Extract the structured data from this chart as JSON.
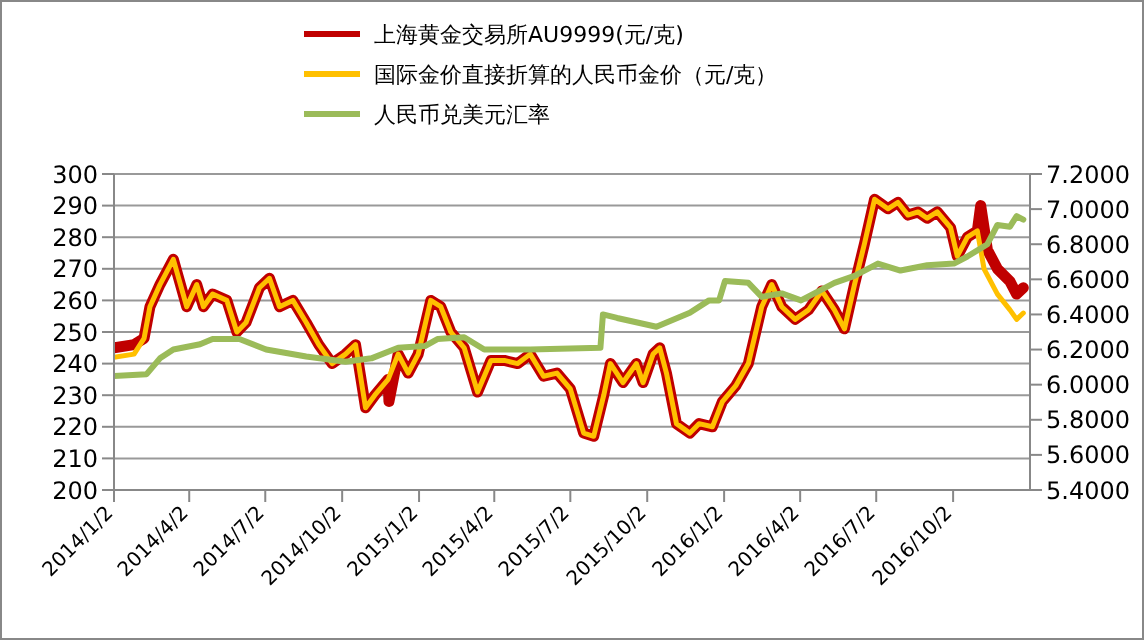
{
  "chart_data": {
    "type": "line",
    "legend": "top",
    "grid": "y",
    "marker": "none",
    "line_style": "solid",
    "xlim": [
      "2014-01-02",
      "2017-01-02"
    ],
    "xticks": [
      {
        "value": "2014-01-02",
        "label": "2014/1/2"
      },
      {
        "value": "2014-04-02",
        "label": "2014/4/2"
      },
      {
        "value": "2014-07-02",
        "label": "2014/7/2"
      },
      {
        "value": "2014-10-02",
        "label": "2014/10/2"
      },
      {
        "value": "2015-01-02",
        "label": "2015/1/2"
      },
      {
        "value": "2015-04-02",
        "label": "2015/4/2"
      },
      {
        "value": "2015-07-02",
        "label": "2015/7/2"
      },
      {
        "value": "2015-10-02",
        "label": "2015/10/2"
      },
      {
        "value": "2016-01-02",
        "label": "2016/1/2"
      },
      {
        "value": "2016-04-02",
        "label": "2016/4/2"
      },
      {
        "value": "2016-07-02",
        "label": "2016/7/2"
      },
      {
        "value": "2016-10-02",
        "label": "2016/10/2"
      }
    ],
    "ylim": [
      200,
      300
    ],
    "yticks": [
      200,
      210,
      220,
      230,
      240,
      250,
      260,
      270,
      280,
      290,
      300
    ],
    "y2lim": [
      5.4,
      7.2
    ],
    "y2ticks": [
      {
        "value": 5.4,
        "label": "5.4000"
      },
      {
        "value": 5.6,
        "label": "5.6000"
      },
      {
        "value": 5.8,
        "label": "5.8000"
      },
      {
        "value": 6.0,
        "label": "6.0000"
      },
      {
        "value": 6.2,
        "label": "6.2000"
      },
      {
        "value": 6.4,
        "label": "6.4000"
      },
      {
        "value": 6.6,
        "label": "6.6000"
      },
      {
        "value": 6.8,
        "label": "6.8000"
      },
      {
        "value": 7.0,
        "label": "7.0000"
      },
      {
        "value": 7.2,
        "label": "7.2000"
      }
    ],
    "series": [
      {
        "name": "上海黄金交易所AU9999(元/克)",
        "color": "#c00000",
        "x": [
          "2014-01-02",
          "2014-01-26",
          "2014-02-07",
          "2014-02-14",
          "2014-02-26",
          "2014-03-14",
          "2014-03-30",
          "2014-04-11",
          "2014-04-19",
          "2014-04-30",
          "2014-05-17",
          "2014-05-29",
          "2014-06-09",
          "2014-06-25",
          "2014-07-07",
          "2014-07-19",
          "2014-08-04",
          "2014-08-20",
          "2014-09-04",
          "2014-09-20",
          "2014-10-06",
          "2014-10-18",
          "2014-10-30",
          "2014-11-10",
          "2014-11-26",
          "2014-11-27",
          "2014-12-08",
          "2014-12-20",
          "2015-01-01",
          "2015-01-16",
          "2015-01-28",
          "2015-02-09",
          "2015-02-25",
          "2015-03-13",
          "2015-03-29",
          "2015-04-14",
          "2015-04-30",
          "2015-05-15",
          "2015-05-31",
          "2015-06-16",
          "2015-07-02",
          "2015-07-18",
          "2015-07-30",
          "2015-08-11",
          "2015-08-19",
          "2015-09-03",
          "2015-09-19",
          "2015-09-27",
          "2015-10-09",
          "2015-10-17",
          "2015-10-25",
          "2015-11-06",
          "2015-11-22",
          "2015-12-03",
          "2015-12-19",
          "2015-12-31",
          "2016-01-16",
          "2016-01-31",
          "2016-02-16",
          "2016-02-28",
          "2016-03-11",
          "2016-03-27",
          "2016-04-12",
          "2016-04-28",
          "2016-05-13",
          "2016-05-25",
          "2016-06-06",
          "2016-06-18",
          "2016-06-30",
          "2016-07-16",
          "2016-07-28",
          "2016-08-09",
          "2016-08-21",
          "2016-09-01",
          "2016-09-13",
          "2016-09-29",
          "2016-10-07",
          "2016-10-19",
          "2016-10-31",
          "2016-11-04",
          "2016-11-12",
          "2016-11-24",
          "2016-12-09",
          "2016-12-17",
          "2016-12-25"
        ],
        "values": [
          245,
          246,
          248,
          258,
          265,
          273,
          258,
          265,
          258,
          262,
          260,
          250,
          253,
          264,
          267,
          258,
          260,
          253,
          246,
          240,
          243,
          246,
          226,
          230,
          235,
          228,
          243,
          237,
          243,
          260,
          258,
          250,
          245,
          231,
          241,
          241,
          240,
          243,
          236,
          237,
          232,
          218,
          217,
          230,
          240,
          234,
          240,
          234,
          243,
          245,
          237,
          221,
          218,
          221,
          220,
          228,
          233,
          240,
          258,
          265,
          258,
          254,
          257,
          263,
          257,
          251,
          265,
          278,
          292,
          289,
          291,
          287,
          288,
          286,
          288,
          283,
          274,
          280,
          282,
          290,
          276,
          270,
          266,
          262,
          264
        ]
      },
      {
        "name": "国际金价直接折算的人民币金价（元/克）",
        "color": "#ffc000",
        "x": [
          "2014-01-02",
          "2014-01-26",
          "2014-02-07",
          "2014-02-14",
          "2014-02-26",
          "2014-03-14",
          "2014-03-30",
          "2014-04-11",
          "2014-04-19",
          "2014-04-30",
          "2014-05-17",
          "2014-05-29",
          "2014-06-09",
          "2014-06-25",
          "2014-07-07",
          "2014-07-19",
          "2014-08-04",
          "2014-08-20",
          "2014-09-04",
          "2014-09-20",
          "2014-10-06",
          "2014-10-18",
          "2014-10-30",
          "2014-11-10",
          "2014-11-26",
          "2014-12-08",
          "2014-12-20",
          "2015-01-01",
          "2015-01-16",
          "2015-01-28",
          "2015-02-09",
          "2015-02-25",
          "2015-03-13",
          "2015-03-29",
          "2015-04-14",
          "2015-04-30",
          "2015-05-15",
          "2015-05-31",
          "2015-06-16",
          "2015-07-02",
          "2015-07-18",
          "2015-07-30",
          "2015-08-11",
          "2015-08-19",
          "2015-09-03",
          "2015-09-19",
          "2015-09-27",
          "2015-10-09",
          "2015-10-17",
          "2015-10-25",
          "2015-11-06",
          "2015-11-22",
          "2015-12-03",
          "2015-12-19",
          "2015-12-31",
          "2016-01-16",
          "2016-01-31",
          "2016-02-16",
          "2016-02-28",
          "2016-03-11",
          "2016-03-27",
          "2016-04-12",
          "2016-04-28",
          "2016-05-13",
          "2016-05-25",
          "2016-06-06",
          "2016-06-18",
          "2016-06-30",
          "2016-07-16",
          "2016-07-28",
          "2016-08-09",
          "2016-08-21",
          "2016-09-01",
          "2016-09-13",
          "2016-09-29",
          "2016-10-07",
          "2016-10-19",
          "2016-10-31",
          "2016-11-08",
          "2016-11-24",
          "2016-12-09",
          "2016-12-17",
          "2016-12-25"
        ],
        "values": [
          242,
          243,
          248,
          258,
          265,
          273,
          258,
          265,
          258,
          262,
          260,
          250,
          253,
          264,
          267,
          258,
          260,
          253,
          246,
          240,
          243,
          246,
          226,
          230,
          235,
          243,
          237,
          243,
          260,
          258,
          250,
          245,
          231,
          241,
          241,
          240,
          243,
          236,
          237,
          232,
          218,
          217,
          230,
          240,
          234,
          240,
          234,
          243,
          245,
          237,
          221,
          218,
          221,
          220,
          228,
          233,
          240,
          258,
          265,
          258,
          254,
          257,
          263,
          257,
          251,
          265,
          278,
          292,
          289,
          291,
          287,
          288,
          286,
          288,
          283,
          274,
          280,
          282,
          270,
          262,
          257,
          254,
          256
        ]
      },
      {
        "name": "人民币兑美元汇率",
        "color": "#9bbb59",
        "axis": "y2",
        "x": [
          "2014-01-02",
          "2014-02-10",
          "2014-02-26",
          "2014-03-14",
          "2014-04-15",
          "2014-04-30",
          "2014-06-01",
          "2014-07-03",
          "2014-08-20",
          "2014-10-06",
          "2014-11-06",
          "2014-12-08",
          "2015-01-09",
          "2015-01-24",
          "2015-02-25",
          "2015-03-21",
          "2015-05-15",
          "2015-08-07",
          "2015-08-10",
          "2015-08-27",
          "2015-10-13",
          "2015-11-22",
          "2015-12-15",
          "2015-12-27",
          "2016-01-03",
          "2016-01-31",
          "2016-02-16",
          "2016-03-11",
          "2016-04-03",
          "2016-05-13",
          "2016-06-06",
          "2016-07-04",
          "2016-07-31",
          "2016-09-01",
          "2016-10-03",
          "2016-10-19",
          "2016-11-12",
          "2016-11-24",
          "2016-12-09",
          "2016-12-17",
          "2016-12-25"
        ],
        "values": [
          6.05,
          6.06,
          6.15,
          6.2,
          6.23,
          6.26,
          6.26,
          6.2,
          6.16,
          6.13,
          6.15,
          6.21,
          6.22,
          6.26,
          6.27,
          6.2,
          6.2,
          6.21,
          6.4,
          6.38,
          6.33,
          6.41,
          6.48,
          6.48,
          6.59,
          6.58,
          6.5,
          6.52,
          6.48,
          6.58,
          6.62,
          6.69,
          6.65,
          6.68,
          6.69,
          6.73,
          6.8,
          6.91,
          6.9,
          6.96,
          6.94
        ]
      }
    ]
  }
}
